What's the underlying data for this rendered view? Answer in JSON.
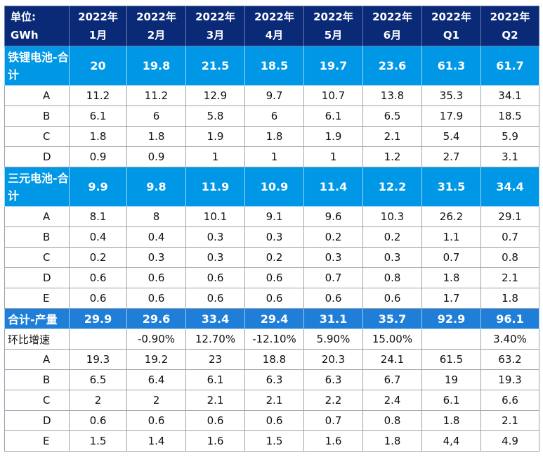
{
  "header": {
    "unit_line1": "单位:",
    "unit_line2": "GWh",
    "columns": [
      [
        "2022年",
        "1月"
      ],
      [
        "2022年",
        "2月"
      ],
      [
        "2022年",
        "3月"
      ],
      [
        "2022年",
        "4月"
      ],
      [
        "2022年",
        "5月"
      ],
      [
        "2022年",
        "6月"
      ],
      [
        "2022年",
        "Q1"
      ],
      [
        "2022年",
        "Q2"
      ]
    ]
  },
  "rows": [
    {
      "type": "sub",
      "label": "铁锂电池-合计",
      "values": [
        "20",
        "19.8",
        "21.5",
        "18.5",
        "19.7",
        "23.6",
        "61.3",
        "61.7"
      ]
    },
    {
      "type": "row",
      "label": "A",
      "values": [
        "11.2",
        "11.2",
        "12.9",
        "9.7",
        "10.7",
        "13.8",
        "35.3",
        "34.1"
      ]
    },
    {
      "type": "row",
      "label": "B",
      "values": [
        "6.1",
        "6",
        "5.8",
        "6",
        "6.1",
        "6.5",
        "17.9",
        "18.5"
      ]
    },
    {
      "type": "row",
      "label": "C",
      "values": [
        "1.8",
        "1.8",
        "1.9",
        "1.8",
        "1.9",
        "2.1",
        "5.4",
        "5.9"
      ]
    },
    {
      "type": "row",
      "label": "D",
      "values": [
        "0.9",
        "0.9",
        "1",
        "1",
        "1",
        "1.2",
        "2.7",
        "3.1"
      ]
    },
    {
      "type": "sub",
      "label": "三元电池-合计",
      "values": [
        "9.9",
        "9.8",
        "11.9",
        "10.9",
        "11.4",
        "12.2",
        "31.5",
        "34.4"
      ]
    },
    {
      "type": "row",
      "label": "A",
      "values": [
        "8.1",
        "8",
        "10.1",
        "9.1",
        "9.6",
        "10.3",
        "26.2",
        "29.1"
      ]
    },
    {
      "type": "row",
      "label": "B",
      "values": [
        "0.4",
        "0.4",
        "0.3",
        "0.3",
        "0.2",
        "0.2",
        "1.1",
        "0.7"
      ]
    },
    {
      "type": "row",
      "label": "C",
      "values": [
        "0.2",
        "0.3",
        "0.3",
        "0.2",
        "0.3",
        "0.3",
        "0.7",
        "0.8"
      ]
    },
    {
      "type": "row",
      "label": "D",
      "values": [
        "0.6",
        "0.6",
        "0.6",
        "0.6",
        "0.7",
        "0.8",
        "1.8",
        "2.1"
      ]
    },
    {
      "type": "row",
      "label": "E",
      "values": [
        "0.6",
        "0.6",
        "0.6",
        "0.6",
        "0.6",
        "0.6",
        "1.7",
        "1.8"
      ]
    },
    {
      "type": "tot",
      "label": "合计-产量",
      "values": [
        "29.9",
        "29.6",
        "33.4",
        "29.4",
        "31.1",
        "35.7",
        "92.9",
        "96.1"
      ]
    },
    {
      "type": "plain",
      "label": "环比增速",
      "values": [
        "",
        "-0.90%",
        "12.70%",
        "-12.10%",
        "5.90%",
        "15.00%",
        "",
        "3.40%"
      ]
    },
    {
      "type": "row",
      "label": "A",
      "values": [
        "19.3",
        "19.2",
        "23",
        "18.8",
        "20.3",
        "24.1",
        "61.5",
        "63.2"
      ]
    },
    {
      "type": "row",
      "label": "B",
      "values": [
        "6.5",
        "6.4",
        "6.1",
        "6.3",
        "6.3",
        "6.7",
        "19",
        "19.3"
      ]
    },
    {
      "type": "row",
      "label": "C",
      "values": [
        "2",
        "2",
        "2.1",
        "2.1",
        "2.2",
        "2.4",
        "6.1",
        "6.6"
      ]
    },
    {
      "type": "row",
      "label": "D",
      "values": [
        "0.6",
        "0.6",
        "0.6",
        "0.6",
        "0.7",
        "0.8",
        "1.8",
        "2.1"
      ]
    },
    {
      "type": "row",
      "label": "E",
      "values": [
        "1.5",
        "1.4",
        "1.6",
        "1.5",
        "1.6",
        "1.8",
        "4,4",
        "4.9"
      ]
    }
  ]
}
